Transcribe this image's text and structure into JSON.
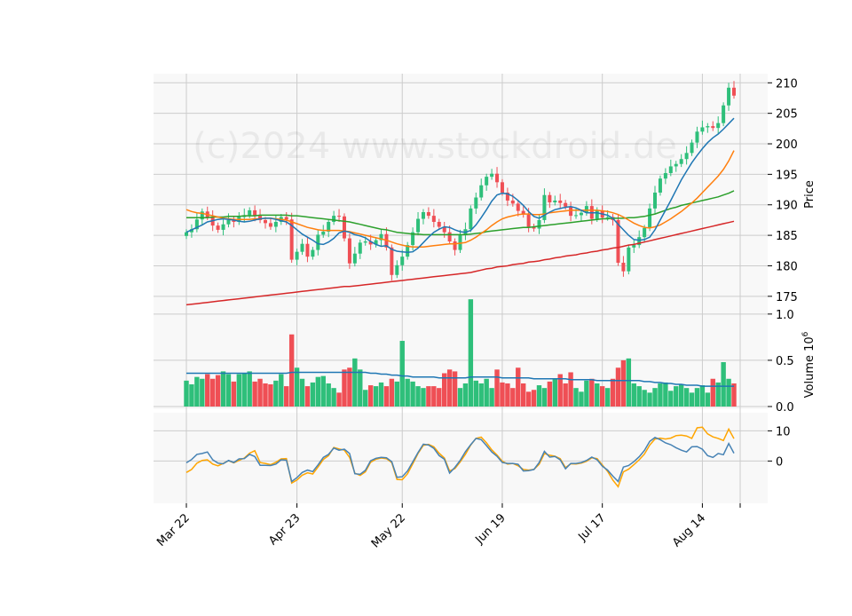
{
  "watermark": "(c)2024 www.stockdroid.de",
  "chart_data": {
    "type": "candlestick",
    "colors": {
      "up": "#2ebf7a",
      "down": "#ef4f55",
      "ma_fast": "#1f77b4",
      "ma_mid": "#ff7f0e",
      "ma_slow": "#2ca02c",
      "ma_long": "#d62728",
      "osc_main": "#4682b4",
      "osc_signal": "#ffa500",
      "grid": "#cccccc",
      "panel_bg": "#f8f8f8"
    },
    "x_tick_labels": [
      "Mar 22",
      "Apr 23",
      "May 22",
      "Jun 19",
      "Jul 17",
      "Aug 14"
    ],
    "price_panel": {
      "ylabel": "Price",
      "ylim": [
        172.5,
        211.5
      ],
      "yticks": [
        175,
        180,
        185,
        190,
        195,
        200,
        205,
        210
      ],
      "closes": [
        185.5,
        186.0,
        187.6,
        188.9,
        188.0,
        186.6,
        185.9,
        186.8,
        187.5,
        187.2,
        188.0,
        188.3,
        189.1,
        188.2,
        187.5,
        187.0,
        186.4,
        187.2,
        188.0,
        187.6,
        181.0,
        182.3,
        183.6,
        181.5,
        182.6,
        185.1,
        185.6,
        187.2,
        188.2,
        188.1,
        184.5,
        180.4,
        182.0,
        183.8,
        184.0,
        183.5,
        184.2,
        185.2,
        183.0,
        178.5,
        180.1,
        181.5,
        183.4,
        185.5,
        187.7,
        188.8,
        188.2,
        187.2,
        186.4,
        185.5,
        184.0,
        182.6,
        185.1,
        186.0,
        189.4,
        191.2,
        193.2,
        194.6,
        195.1,
        193.7,
        192.0,
        190.7,
        190.2,
        189.0,
        188.4,
        186.4,
        186.1,
        187.5,
        191.6,
        190.4,
        190.7,
        190.3,
        189.7,
        188.2,
        188.3,
        188.7,
        189.8,
        187.7,
        189.1,
        187.9,
        188.0,
        187.5,
        180.5,
        179.1,
        183.0,
        183.4,
        184.7,
        186.2,
        189.4,
        192.0,
        194.3,
        195.2,
        196.3,
        196.7,
        197.5,
        198.5,
        200.2,
        202.0,
        202.7,
        202.9,
        202.6,
        203.4,
        206.3,
        209.2,
        207.9
      ],
      "ma_fast": [
        185.5,
        185.9,
        186.3,
        186.7,
        187.2,
        187.4,
        187.6,
        187.7,
        187.6,
        187.5,
        187.3,
        187.2,
        187.3,
        187.5,
        187.7,
        187.8,
        187.8,
        187.6,
        187.4,
        187.2,
        186.6,
        185.9,
        185.2,
        184.7,
        184.2,
        183.6,
        183.5,
        183.9,
        184.5,
        185.4,
        185.7,
        185.5,
        185.1,
        184.9,
        184.6,
        184.0,
        183.5,
        183.2,
        183.3,
        182.7,
        182.4,
        182.3,
        182.2,
        182.3,
        182.9,
        183.8,
        184.7,
        185.5,
        186.0,
        186.4,
        186.3,
        185.9,
        185.6,
        185.5,
        185.8,
        186.7,
        187.9,
        189.2,
        190.6,
        191.6,
        191.9,
        191.8,
        191.4,
        190.7,
        189.9,
        188.9,
        188.1,
        187.8,
        188.3,
        188.8,
        189.2,
        189.4,
        189.6,
        189.7,
        189.5,
        189.1,
        188.7,
        188.7,
        188.7,
        188.5,
        188.3,
        187.8,
        186.8,
        185.9,
        185.0,
        184.3,
        184.2,
        184.3,
        184.7,
        185.9,
        187.5,
        189.1,
        190.7,
        192.4,
        194.1,
        195.5,
        196.9,
        198.1,
        199.2,
        200.2,
        201.0,
        201.6,
        202.4,
        203.3,
        204.2
      ],
      "ma_mid": [
        189.2,
        188.9,
        188.7,
        188.6,
        188.4,
        188.2,
        188.0,
        187.8,
        187.7,
        187.6,
        187.6,
        187.6,
        187.6,
        187.7,
        187.7,
        187.8,
        187.8,
        187.7,
        187.6,
        187.5,
        187.2,
        186.9,
        186.6,
        186.3,
        186.1,
        185.9,
        185.8,
        185.8,
        185.8,
        185.8,
        185.7,
        185.6,
        185.4,
        185.2,
        185.0,
        184.8,
        184.6,
        184.4,
        184.2,
        183.9,
        183.6,
        183.4,
        183.2,
        183.1,
        183.1,
        183.1,
        183.2,
        183.3,
        183.4,
        183.5,
        183.6,
        183.6,
        183.7,
        183.8,
        184.2,
        184.7,
        185.3,
        185.9,
        186.6,
        187.2,
        187.7,
        188.0,
        188.2,
        188.4,
        188.5,
        188.5,
        188.4,
        188.4,
        188.5,
        188.7,
        188.8,
        188.9,
        189.0,
        189.1,
        189.1,
        189.1,
        189.1,
        189.1,
        189.1,
        189.0,
        188.9,
        188.7,
        188.4,
        188.0,
        187.5,
        187.0,
        186.6,
        186.3,
        186.2,
        186.4,
        186.7,
        187.2,
        187.7,
        188.3,
        188.9,
        189.6,
        190.3,
        191.1,
        192.0,
        192.9,
        193.8,
        194.7,
        195.8,
        197.2,
        198.9
      ],
      "ma_slow": [
        187.9,
        187.9,
        187.9,
        187.9,
        187.9,
        188.0,
        188.0,
        188.0,
        188.1,
        188.1,
        188.1,
        188.2,
        188.2,
        188.2,
        188.3,
        188.3,
        188.3,
        188.3,
        188.3,
        188.3,
        188.2,
        188.2,
        188.1,
        188.0,
        187.9,
        187.8,
        187.7,
        187.6,
        187.5,
        187.4,
        187.3,
        187.2,
        187.0,
        186.8,
        186.6,
        186.4,
        186.2,
        186.0,
        185.9,
        185.7,
        185.5,
        185.4,
        185.3,
        185.2,
        185.2,
        185.1,
        185.1,
        185.1,
        185.1,
        185.1,
        185.1,
        185.1,
        185.1,
        185.1,
        185.2,
        185.3,
        185.4,
        185.6,
        185.7,
        185.8,
        185.9,
        186.0,
        186.1,
        186.2,
        186.3,
        186.3,
        186.4,
        186.5,
        186.6,
        186.7,
        186.8,
        186.9,
        187.0,
        187.1,
        187.2,
        187.3,
        187.4,
        187.5,
        187.6,
        187.7,
        187.7,
        187.8,
        187.8,
        187.8,
        187.9,
        187.9,
        188.0,
        188.1,
        188.3,
        188.5,
        188.8,
        189.1,
        189.4,
        189.6,
        189.9,
        190.1,
        190.3,
        190.5,
        190.7,
        190.9,
        191.1,
        191.3,
        191.6,
        191.9,
        192.3
      ],
      "ma_long": [
        173.6,
        173.7,
        173.8,
        173.9,
        174.0,
        174.1,
        174.2,
        174.3,
        174.4,
        174.5,
        174.6,
        174.7,
        174.8,
        174.9,
        175.0,
        175.1,
        175.2,
        175.3,
        175.4,
        175.5,
        175.6,
        175.7,
        175.8,
        175.9,
        176.0,
        176.1,
        176.2,
        176.3,
        176.4,
        176.5,
        176.6,
        176.6,
        176.7,
        176.8,
        176.9,
        177.0,
        177.1,
        177.2,
        177.3,
        177.4,
        177.5,
        177.6,
        177.7,
        177.8,
        177.9,
        178.0,
        178.1,
        178.2,
        178.3,
        178.4,
        178.5,
        178.6,
        178.7,
        178.8,
        178.9,
        179.1,
        179.3,
        179.5,
        179.6,
        179.8,
        179.9,
        180.0,
        180.2,
        180.3,
        180.4,
        180.6,
        180.7,
        180.8,
        181.0,
        181.1,
        181.3,
        181.4,
        181.6,
        181.7,
        181.8,
        182.0,
        182.1,
        182.3,
        182.4,
        182.6,
        182.7,
        182.9,
        183.0,
        183.2,
        183.4,
        183.5,
        183.7,
        183.9,
        184.1,
        184.3,
        184.5,
        184.7,
        184.9,
        185.1,
        185.3,
        185.5,
        185.7,
        185.9,
        186.1,
        186.3,
        186.5,
        186.7,
        186.9,
        187.1,
        187.3
      ]
    },
    "volume_panel": {
      "ylabel": "Volume  10^6",
      "ylim": [
        0,
        1.2
      ],
      "yticks": [
        "0.0",
        "0.5",
        "1.0"
      ],
      "volumes": [
        0.28,
        0.24,
        0.32,
        0.3,
        0.35,
        0.3,
        0.34,
        0.38,
        0.35,
        0.27,
        0.35,
        0.36,
        0.38,
        0.27,
        0.3,
        0.25,
        0.24,
        0.28,
        0.35,
        0.22,
        0.78,
        0.42,
        0.3,
        0.22,
        0.26,
        0.32,
        0.33,
        0.25,
        0.2,
        0.15,
        0.4,
        0.42,
        0.52,
        0.4,
        0.18,
        0.23,
        0.22,
        0.26,
        0.22,
        0.3,
        0.27,
        0.71,
        0.3,
        0.27,
        0.22,
        0.2,
        0.22,
        0.22,
        0.2,
        0.36,
        0.4,
        0.38,
        0.2,
        0.25,
        1.16,
        0.28,
        0.25,
        0.3,
        0.2,
        0.4,
        0.26,
        0.25,
        0.2,
        0.42,
        0.25,
        0.16,
        0.18,
        0.23,
        0.2,
        0.27,
        0.3,
        0.35,
        0.25,
        0.37,
        0.2,
        0.16,
        0.28,
        0.3,
        0.25,
        0.22,
        0.2,
        0.3,
        0.42,
        0.5,
        0.52,
        0.25,
        0.22,
        0.18,
        0.15,
        0.2,
        0.25,
        0.26,
        0.17,
        0.22,
        0.24,
        0.2,
        0.15,
        0.2,
        0.23,
        0.15,
        0.3,
        0.26,
        0.48,
        0.3,
        0.25
      ],
      "volume_ma": [
        0.36,
        0.36,
        0.36,
        0.36,
        0.36,
        0.36,
        0.36,
        0.36,
        0.36,
        0.36,
        0.36,
        0.36,
        0.36,
        0.36,
        0.36,
        0.36,
        0.36,
        0.36,
        0.36,
        0.36,
        0.37,
        0.37,
        0.37,
        0.37,
        0.37,
        0.37,
        0.37,
        0.37,
        0.37,
        0.37,
        0.37,
        0.37,
        0.37,
        0.37,
        0.37,
        0.36,
        0.36,
        0.35,
        0.35,
        0.34,
        0.34,
        0.33,
        0.33,
        0.32,
        0.32,
        0.32,
        0.32,
        0.32,
        0.31,
        0.31,
        0.31,
        0.31,
        0.31,
        0.31,
        0.32,
        0.32,
        0.32,
        0.32,
        0.32,
        0.32,
        0.31,
        0.31,
        0.31,
        0.31,
        0.31,
        0.31,
        0.3,
        0.3,
        0.3,
        0.3,
        0.3,
        0.3,
        0.3,
        0.29,
        0.29,
        0.29,
        0.29,
        0.29,
        0.28,
        0.28,
        0.28,
        0.28,
        0.28,
        0.28,
        0.28,
        0.28,
        0.28,
        0.27,
        0.27,
        0.26,
        0.26,
        0.25,
        0.25,
        0.24,
        0.24,
        0.23,
        0.23,
        0.23,
        0.22,
        0.22,
        0.22,
        0.22,
        0.22,
        0.22,
        0.22
      ]
    },
    "oscillator_panel": {
      "ylim": [
        -14,
        16
      ],
      "yticks": [
        "0",
        "10"
      ],
      "main": [
        -0.6,
        0.5,
        2.2,
        2.5,
        3.0,
        0.4,
        -0.7,
        -0.9,
        0.2,
        -0.5,
        0.7,
        0.8,
        2.2,
        1.5,
        -1.4,
        -1.4,
        -1.5,
        -1.0,
        0.4,
        0.3,
        -6.8,
        -5.5,
        -3.8,
        -3.0,
        -3.5,
        -1.3,
        1.2,
        2.2,
        4.3,
        3.6,
        3.9,
        2.5,
        -4.2,
        -4.4,
        -3.1,
        0.1,
        0.9,
        1.2,
        1.1,
        -0.2,
        -5.4,
        -5.2,
        -3.3,
        -0.3,
        2.8,
        5.6,
        5.3,
        4.2,
        1.8,
        0.6,
        -4.0,
        -2.1,
        0.2,
        3.1,
        5.4,
        7.5,
        7.1,
        5.1,
        3.0,
        1.6,
        -0.5,
        -0.8,
        -0.8,
        -1.1,
        -3.3,
        -3.2,
        -2.8,
        -0.5,
        3.2,
        1.3,
        1.5,
        0.4,
        -2.6,
        -0.8,
        -0.8,
        -0.5,
        0.2,
        1.3,
        0.4,
        -1.7,
        -3.0,
        -5.0,
        -6.8,
        -2.0,
        -1.5,
        -0.2,
        1.4,
        3.5,
        6.5,
        7.8,
        7.1,
        6.0,
        5.4,
        4.4,
        3.6,
        3.0,
        4.7,
        4.8,
        3.9,
        1.8,
        1.2,
        2.5,
        2.1,
        5.8,
        2.6
      ],
      "signal": [
        -3.8,
        -2.8,
        -0.7,
        0.2,
        0.4,
        -1.0,
        -1.6,
        -0.8,
        0.1,
        -0.6,
        0.2,
        1.0,
        2.6,
        3.4,
        -0.5,
        -0.8,
        -1.2,
        -0.4,
        0.7,
        0.8,
        -7.3,
        -6.3,
        -4.7,
        -3.9,
        -4.3,
        -2.0,
        0.5,
        1.8,
        4.5,
        4.0,
        3.6,
        1.2,
        -4.0,
        -4.8,
        -3.6,
        -0.4,
        0.6,
        1.0,
        0.8,
        -0.5,
        -6.1,
        -6.2,
        -4.2,
        -0.9,
        2.5,
        5.2,
        5.5,
        4.7,
        2.6,
        1.0,
        -3.3,
        -2.5,
        -0.3,
        2.2,
        5.3,
        7.5,
        7.9,
        6.0,
        3.7,
        2.0,
        -0.1,
        -1.0,
        -0.8,
        -1.6,
        -2.8,
        -3.0,
        -2.8,
        -1.1,
        2.5,
        1.9,
        1.6,
        0.8,
        -2.2,
        -0.9,
        -1.0,
        -0.7,
        -0.1,
        1.1,
        0.8,
        -1.3,
        -3.4,
        -6.3,
        -8.5,
        -3.6,
        -2.7,
        -1.2,
        0.4,
        2.3,
        5.3,
        7.3,
        7.6,
        7.3,
        7.6,
        8.4,
        8.6,
        8.3,
        7.5,
        11.0,
        11.2,
        9.0,
        8.0,
        7.5,
        6.8,
        10.6,
        7.4
      ]
    }
  }
}
